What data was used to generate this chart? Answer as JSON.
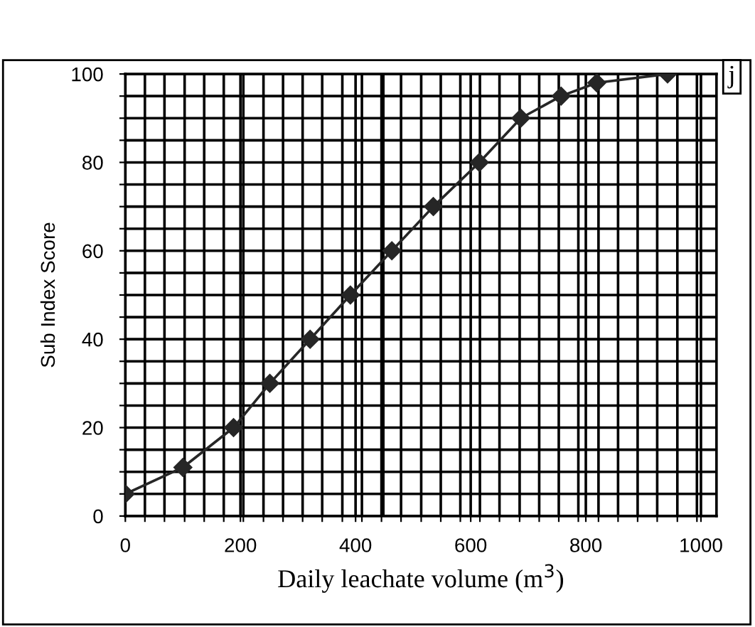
{
  "chart_data": {
    "type": "line",
    "xlabel": "Daily leachate volume (m$^{3}$)",
    "ylabel": "Sub Index Score",
    "annotations": [
      "j"
    ],
    "x": [
      0,
      100,
      188,
      251,
      321,
      391,
      463,
      535,
      615,
      687,
      757,
      819,
      942
    ],
    "series": [
      {
        "color": "#262626",
        "values": [
          5,
          11,
          20,
          30,
          40,
          50,
          60,
          70,
          80,
          90,
          95,
          98,
          100
        ]
      }
    ],
    "xlim": [
      0,
      1027
    ],
    "xticks": [
      0,
      200,
      400,
      600,
      800,
      1000,
      {
        "value": 34,
        "label": null
      },
      {
        "value": 68,
        "label": null
      },
      {
        "value": 103,
        "label": null
      },
      {
        "value": 137,
        "label": null
      },
      {
        "value": 171,
        "label": null
      },
      {
        "value": 205,
        "label": null
      },
      {
        "value": 240,
        "label": null
      },
      {
        "value": 274,
        "label": null
      },
      {
        "value": 308,
        "label": null
      },
      {
        "value": 342,
        "label": null
      },
      {
        "value": 377,
        "label": null
      },
      {
        "value": 411,
        "label": null
      },
      {
        "value": 445,
        "label": null
      },
      {
        "value": 479,
        "label": null
      },
      {
        "value": 514,
        "label": null
      },
      {
        "value": 548,
        "label": null
      },
      {
        "value": 582,
        "label": null
      },
      {
        "value": 616,
        "label": null
      },
      {
        "value": 650,
        "label": null
      },
      {
        "value": 685,
        "label": null
      },
      {
        "value": 719,
        "label": null
      },
      {
        "value": 753,
        "label": null
      },
      {
        "value": 787,
        "label": null
      },
      {
        "value": 822,
        "label": null
      },
      {
        "value": 856,
        "label": null
      },
      {
        "value": 890,
        "label": null
      },
      {
        "value": 924,
        "label": null
      },
      {
        "value": 959,
        "label": null
      },
      {
        "value": 993,
        "label": null
      }
    ],
    "ylim": [
      0,
      100
    ],
    "yticks": [
      0,
      20,
      40,
      60,
      80,
      100,
      {
        "value": 5,
        "label": null
      },
      {
        "value": 10,
        "label": null
      },
      {
        "value": 15,
        "label": null
      },
      {
        "value": 25,
        "label": null
      },
      {
        "value": 30,
        "label": null
      },
      {
        "value": 35,
        "label": null
      },
      {
        "value": 45,
        "label": null
      },
      {
        "value": 50,
        "label": null
      },
      {
        "value": 55,
        "label": null
      },
      {
        "value": 65,
        "label": null
      },
      {
        "value": 70,
        "label": null
      },
      {
        "value": 75,
        "label": null
      },
      {
        "value": 85,
        "label": null
      },
      {
        "value": 90,
        "label": null
      },
      {
        "value": 95,
        "label": null
      }
    ],
    "ref_lines": [
      {
        "axis": "x",
        "value": 447,
        "color": "#000000"
      }
    ],
    "grid": true,
    "marker": "diamond",
    "line_style": "solid",
    "legend": false
  }
}
